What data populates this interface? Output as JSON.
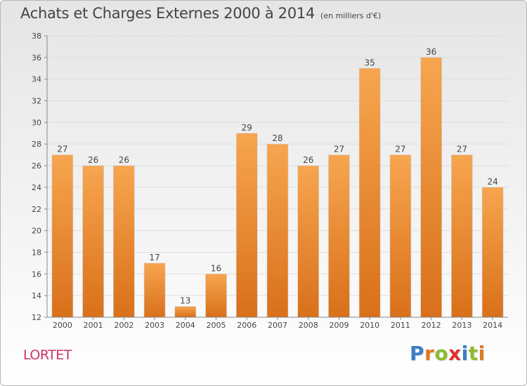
{
  "header": {
    "title": "Achats et Charges Externes 2000 à 2014",
    "unit": "(en milliers d'€)"
  },
  "footer": {
    "commune": "LORTET",
    "brand": "Proxiti",
    "brand_letters": [
      {
        "char": "P",
        "color": "#3a7fc4"
      },
      {
        "char": "r",
        "color": "#e07a1f"
      },
      {
        "char": "o",
        "color": "#8dbb2f"
      },
      {
        "char": "x",
        "color": "#e0302a"
      },
      {
        "char": "i",
        "color": "#3a7fc4"
      },
      {
        "char": "t",
        "color": "#8dbb2f"
      },
      {
        "char": "i",
        "color": "#e07a1f"
      }
    ]
  },
  "colors": {
    "bar_top": "#f7a54f",
    "bar_bottom": "#d9701a",
    "axis": "#888888",
    "grid": "#dddddd"
  },
  "chart_data": {
    "type": "bar",
    "title": "Achats et Charges Externes 2000 à 2014",
    "subtitle": "(en milliers d'€)",
    "categories": [
      "2000",
      "2001",
      "2002",
      "2003",
      "2004",
      "2005",
      "2006",
      "2007",
      "2008",
      "2009",
      "2010",
      "2011",
      "2012",
      "2013",
      "2014"
    ],
    "values": [
      27,
      26,
      26,
      17,
      13,
      16,
      29,
      28,
      26,
      27,
      35,
      27,
      36,
      27,
      24
    ],
    "ylim": [
      12,
      38
    ],
    "yticks": [
      12,
      14,
      16,
      18,
      20,
      22,
      24,
      26,
      28,
      30,
      32,
      34,
      36,
      38
    ],
    "grid": true,
    "data_labels": true
  }
}
